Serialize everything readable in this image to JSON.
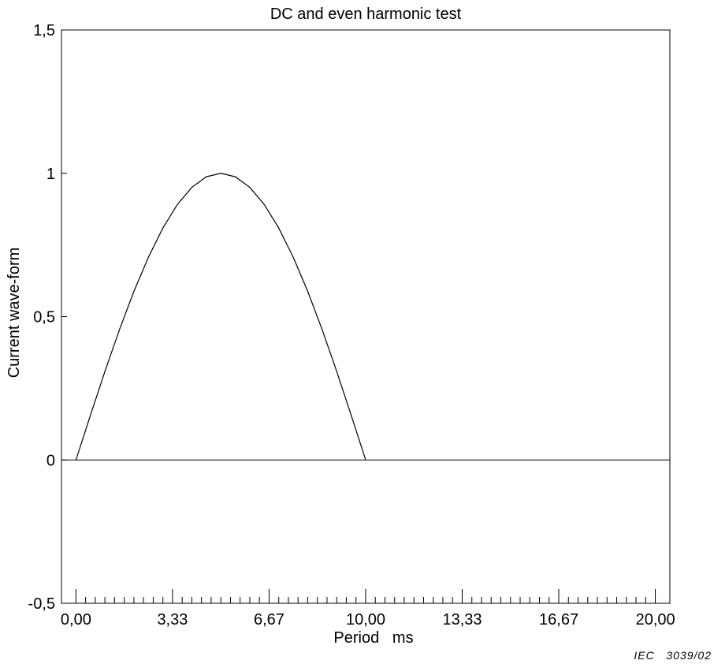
{
  "chart_data": {
    "type": "line",
    "title": "DC and even harmonic test",
    "xlabel": "Period   ms",
    "ylabel": "Current wave-form",
    "xlim": [
      -0.5,
      20.5
    ],
    "ylim": [
      -0.5,
      1.5
    ],
    "x_ticks": [
      0,
      3.333,
      6.667,
      10,
      13.333,
      16.667,
      20
    ],
    "x_tick_labels": [
      "0,00",
      "3,33",
      "6,67",
      "10,00",
      "13,33",
      "16,67",
      "20,00"
    ],
    "y_ticks": [
      -0.5,
      0,
      0.5,
      1,
      1.5
    ],
    "y_tick_labels": [
      "-0,5",
      "0",
      "0,5",
      "1",
      "1,5"
    ],
    "x_minor_step": 0.3333,
    "grid": false,
    "legend": "none",
    "series": [
      {
        "x": [
          0,
          0.5,
          1,
          1.5,
          2,
          2.5,
          3,
          3.5,
          4,
          4.5,
          5,
          5.5,
          6,
          6.5,
          7,
          7.5,
          8,
          8.5,
          9,
          9.5,
          10
        ],
        "y": [
          0,
          0.156,
          0.309,
          0.454,
          0.588,
          0.707,
          0.809,
          0.891,
          0.951,
          0.988,
          1,
          0.988,
          0.951,
          0.891,
          0.809,
          0.707,
          0.588,
          0.454,
          0.309,
          0.156,
          0
        ]
      }
    ]
  },
  "caption": "IEC   3039/02"
}
